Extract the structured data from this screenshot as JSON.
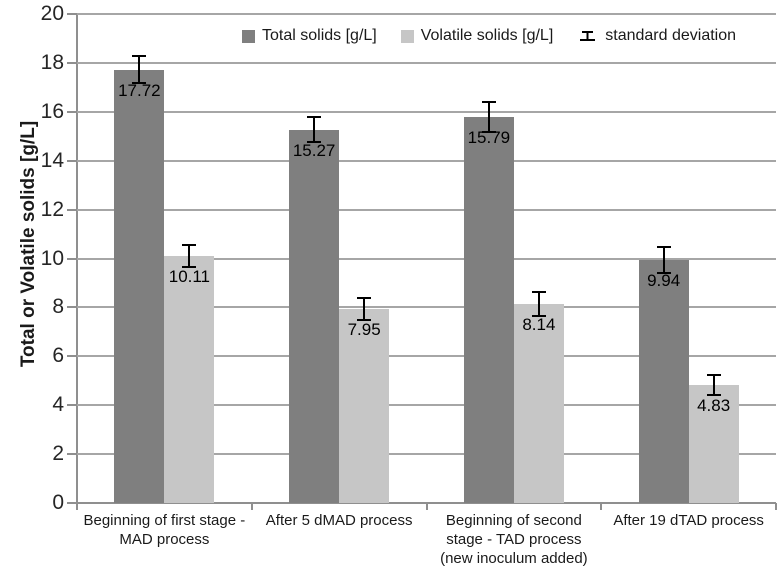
{
  "chart_data": {
    "type": "bar",
    "title": "",
    "ylabel": "Total or Volatile solids [g/L]",
    "xlabel": "",
    "ylim": [
      0,
      20
    ],
    "ytick_step": 2,
    "grid": true,
    "legend_position": "top",
    "categories": [
      "Beginning of first stage -\nMAD process",
      "After 5 dMAD process",
      "Beginning of second\nstage - TAD process\n(new inoculum added)",
      "After 19 dTAD process"
    ],
    "series": [
      {
        "name": "Total solids [g/L]",
        "color": "#7f7f7f",
        "values": [
          17.72,
          15.27,
          15.79,
          9.94
        ],
        "stdev": [
          0.55,
          0.5,
          0.6,
          0.55
        ]
      },
      {
        "name": "Volatile solids [g/L]",
        "color": "#c6c6c6",
        "values": [
          10.11,
          7.95,
          8.14,
          4.83
        ],
        "stdev": [
          0.45,
          0.45,
          0.5,
          0.4
        ]
      }
    ],
    "error_bar_label": "standard deviation",
    "colors": {
      "gridline": "#a6a6a6",
      "axis": "#8f8f8f",
      "error_bar": "#000000",
      "text": "#1a1a1a"
    }
  }
}
